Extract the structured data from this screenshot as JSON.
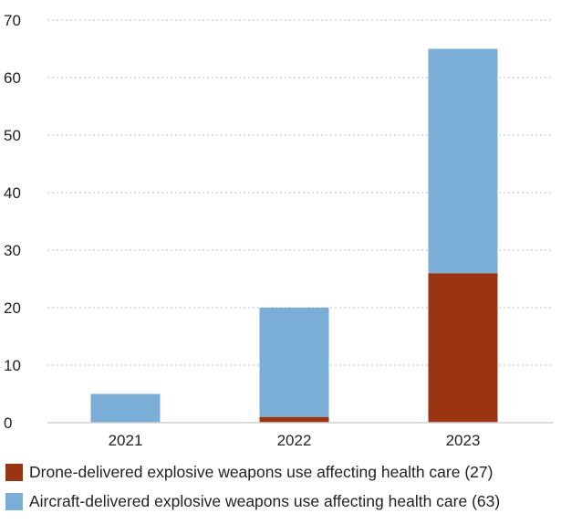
{
  "chart_data": {
    "type": "bar",
    "stacked": true,
    "categories": [
      "2021",
      "2022",
      "2023"
    ],
    "series": [
      {
        "name": "Drone-delivered explosive weapons use affecting health care (27)",
        "color": "#9a3412",
        "values": [
          0,
          1,
          26
        ]
      },
      {
        "name": "Aircraft-delivered explosive weapons use affecting health care (63)",
        "color": "#7aaed6",
        "values": [
          5,
          19,
          39
        ]
      }
    ],
    "y_ticks": [
      "0",
      "10",
      "20",
      "30",
      "40",
      "50",
      "60",
      "70"
    ],
    "ylim": [
      0,
      70
    ],
    "grid": "horizontal dotted",
    "legend_position": "bottom",
    "title": "",
    "xlabel": "",
    "ylabel": ""
  },
  "legend": {
    "items": [
      {
        "label": "Drone-delivered explosive weapons use affecting health care (27)",
        "color": "#9a3412"
      },
      {
        "label": "Aircraft-delivered explosive weapons use affecting health care (63)",
        "color": "#7aaed6"
      }
    ]
  }
}
